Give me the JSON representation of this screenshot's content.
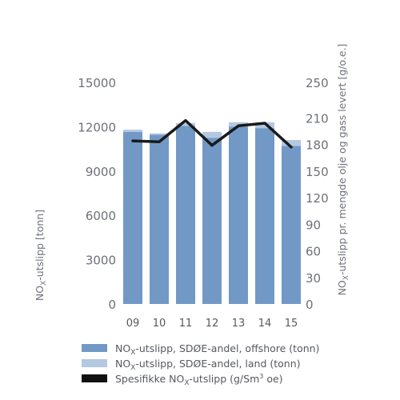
{
  "chart_data": {
    "type": "bar",
    "categories": [
      "09",
      "10",
      "11",
      "12",
      "13",
      "14",
      "15"
    ],
    "series": [
      {
        "name": "NOX-utslipp, SDØE-andel, offshore (tonn)",
        "kind": "bar",
        "axis": "left",
        "color": "#7299c6",
        "values": [
          11650,
          11450,
          12050,
          11250,
          12000,
          11900,
          10700
        ]
      },
      {
        "name": "NOX-utslipp, SDØE-andel, land (tonn)",
        "kind": "bar-stacked",
        "axis": "left",
        "color": "#b3c8e1",
        "values": [
          150,
          100,
          200,
          400,
          300,
          400,
          400
        ]
      },
      {
        "name": "Spesifikke NOX-utslipp (g/Sm3 oe)",
        "kind": "line",
        "axis": "right",
        "color": "#1a1a1a",
        "values": [
          184,
          183,
          207,
          179,
          201,
          204,
          177
        ]
      }
    ],
    "left_axis": {
      "label": "NOX-utslipp [tonn]",
      "ylim": [
        0,
        15000
      ],
      "ticks": [
        "0",
        "3000",
        "6000",
        "9000",
        "12000",
        "15000"
      ]
    },
    "right_axis": {
      "label": "NOX-utslipp pr. mengde olje og gass levert [g/o.e.]",
      "ylim": [
        0,
        250
      ],
      "ticks": [
        "0",
        "30",
        "60",
        "90",
        "120",
        "150",
        "180",
        "210",
        "250"
      ]
    },
    "grid": false,
    "legend_position": "bottom",
    "legend": [
      {
        "prefix": "NO",
        "sub": "X",
        "suffix": "-utslipp, SDØE-andel, offshore (tonn)",
        "color": "#7299c6"
      },
      {
        "prefix": "NO",
        "sub": "X",
        "suffix": "-utslipp, SDØE-andel, land (tonn)",
        "color": "#b3c8e1"
      },
      {
        "prefix": "Spesifikke NO",
        "sub": "X",
        "suffix": "-utslipp (g/Sm",
        "sup": "3",
        "tail": " oe)",
        "color": "#111111"
      }
    ],
    "axis_titles": {
      "left": {
        "prefix": "NO",
        "sub": "X",
        "suffix": "-utslipp [tonn]"
      },
      "right": {
        "prefix": "NO",
        "sub": "X",
        "suffix": "-utslipp pr. mengde olje og gass levert [g/o.e.]"
      }
    }
  }
}
